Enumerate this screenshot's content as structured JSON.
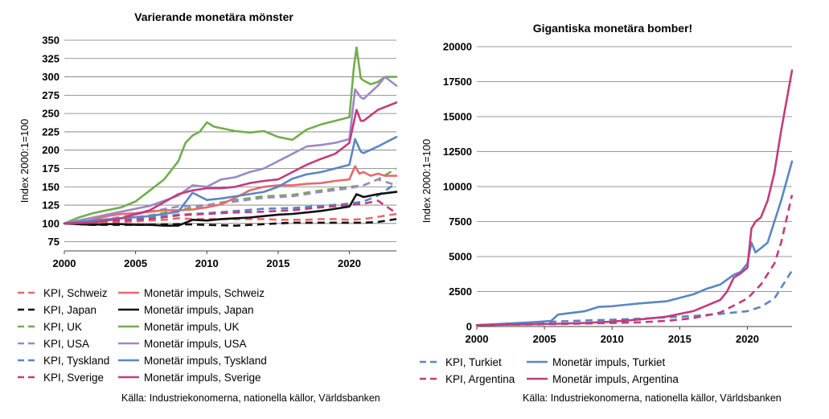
{
  "chart_data": [
    {
      "type": "line",
      "title": "Varierande monetära mönster",
      "xlabel": "",
      "ylabel": "Index 2000:1=100",
      "xlim": [
        2000,
        2023.3
      ],
      "ylim": [
        62.5,
        350
      ],
      "xticks": [
        "2000",
        "2005",
        "2010",
        "2015",
        "2020"
      ],
      "yticks": [
        "75",
        "100",
        "125",
        "150",
        "175",
        "200",
        "225",
        "250",
        "275",
        "300",
        "325",
        "350"
      ],
      "grid": true,
      "legend_position": "bottom",
      "source": "Källa: Industriekonomerna, nationella källor, Världsbanken",
      "series": [
        {
          "name": "KPI, Schweiz",
          "color": "#e8696b",
          "dashed": true,
          "x": [
            2000,
            2001,
            2002,
            2003,
            2004,
            2005,
            2006,
            2007,
            2008,
            2009,
            2010,
            2011,
            2012,
            2013,
            2014,
            2015,
            2016,
            2017,
            2018,
            2019,
            2020,
            2021,
            2022,
            2023.3
          ],
          "y": [
            100,
            100,
            101,
            101,
            102,
            103,
            104,
            105,
            107,
            106,
            106,
            106,
            106,
            106,
            106,
            105,
            105,
            105,
            106,
            106,
            105,
            106,
            109,
            113
          ]
        },
        {
          "name": "Monetär impuls, Schweiz",
          "color": "#e8696b",
          "dashed": false,
          "x": [
            2000,
            2001,
            2002,
            2003,
            2004,
            2005,
            2006,
            2007,
            2008,
            2009,
            2010,
            2011,
            2012,
            2013,
            2014,
            2015,
            2016,
            2017,
            2018,
            2019,
            2020,
            2020.4,
            2020.7,
            2021,
            2021.5,
            2022,
            2022.5,
            2023.3
          ],
          "y": [
            100,
            100,
            105,
            110,
            113,
            114,
            116,
            118,
            118,
            119,
            122,
            126,
            135,
            145,
            150,
            152,
            152,
            154,
            155,
            158,
            160,
            178,
            168,
            170,
            165,
            168,
            165,
            165
          ]
        },
        {
          "name": "KPI, Japan",
          "color": "#111111",
          "dashed": true,
          "x": [
            2000,
            2002,
            2004,
            2006,
            2008,
            2010,
            2012,
            2014,
            2016,
            2018,
            2020,
            2021,
            2022,
            2023.3
          ],
          "y": [
            100,
            98,
            98,
            98,
            99,
            98,
            97,
            99,
            101,
            101,
            101,
            101,
            102,
            106
          ]
        },
        {
          "name": "Monetär impuls, Japan",
          "color": "#111111",
          "dashed": false,
          "x": [
            2000,
            2001,
            2002,
            2003,
            2004,
            2005,
            2006,
            2007,
            2008,
            2009,
            2010,
            2011,
            2012,
            2013,
            2014,
            2015,
            2016,
            2017,
            2018,
            2019,
            2020,
            2020.5,
            2021,
            2022,
            2023.3
          ],
          "y": [
            100,
            99,
            98,
            99,
            99,
            98,
            98,
            97,
            97,
            105,
            104,
            106,
            107,
            108,
            110,
            112,
            113,
            115,
            117,
            120,
            123,
            140,
            136,
            140,
            143
          ]
        },
        {
          "name": "KPI, UK",
          "color": "#72ad4b",
          "dashed": true,
          "x": [
            2000,
            2002,
            2004,
            2006,
            2008,
            2010,
            2012,
            2014,
            2016,
            2018,
            2020,
            2021,
            2022,
            2023.3
          ],
          "y": [
            100,
            103,
            106,
            111,
            118,
            125,
            132,
            137,
            139,
            145,
            150,
            152,
            160,
            175
          ]
        },
        {
          "name": "Monetär impuls, UK",
          "color": "#72ad4b",
          "dashed": false,
          "x": [
            2000,
            2001,
            2002,
            2003,
            2004,
            2005,
            2006,
            2007,
            2008,
            2008.5,
            2009,
            2009.5,
            2010,
            2010.5,
            2011,
            2012,
            2013,
            2014,
            2015,
            2016,
            2017,
            2018,
            2019,
            2020,
            2020.3,
            2020.5,
            2020.8,
            2021,
            2021.5,
            2022,
            2022.5,
            2023.3
          ],
          "y": [
            100,
            108,
            114,
            118,
            122,
            130,
            145,
            160,
            185,
            210,
            220,
            225,
            238,
            232,
            230,
            226,
            224,
            226,
            218,
            214,
            228,
            235,
            240,
            245,
            310,
            340,
            298,
            295,
            290,
            293,
            300,
            300
          ]
        },
        {
          "name": "KPI, USA",
          "color": "#9b88c6",
          "dashed": true,
          "x": [
            2000,
            2002,
            2004,
            2006,
            2008,
            2010,
            2012,
            2014,
            2016,
            2018,
            2020,
            2021,
            2022,
            2023.3
          ],
          "y": [
            100,
            103,
            109,
            116,
            123,
            125,
            130,
            135,
            137,
            143,
            148,
            152,
            160,
            152
          ]
        },
        {
          "name": "Monetär impuls, USA",
          "color": "#9b88c6",
          "dashed": false,
          "x": [
            2000,
            2002,
            2004,
            2006,
            2008,
            2009,
            2010,
            2011,
            2012,
            2013,
            2014,
            2015,
            2016,
            2017,
            2018,
            2019,
            2020,
            2020.4,
            2020.8,
            2021,
            2022,
            2022.5,
            2023.3
          ],
          "y": [
            100,
            108,
            116,
            124,
            138,
            152,
            150,
            160,
            163,
            170,
            175,
            185,
            195,
            205,
            207,
            210,
            215,
            283,
            272,
            270,
            288,
            300,
            288
          ]
        },
        {
          "name": "KPI, Tyskland",
          "color": "#5b86c5",
          "dashed": true,
          "x": [
            2000,
            2002,
            2004,
            2006,
            2008,
            2010,
            2012,
            2014,
            2016,
            2018,
            2020,
            2021,
            2022,
            2023.3
          ],
          "y": [
            100,
            102,
            105,
            108,
            112,
            114,
            117,
            120,
            121,
            124,
            127,
            130,
            138,
            155
          ]
        },
        {
          "name": "Monetär impuls, Tyskland",
          "color": "#5b86c5",
          "dashed": false,
          "x": [
            2000,
            2002,
            2004,
            2006,
            2008,
            2009,
            2010,
            2011,
            2012,
            2013,
            2014,
            2015,
            2016,
            2017,
            2018,
            2019,
            2020,
            2020.4,
            2020.8,
            2021,
            2022,
            2023.3
          ],
          "y": [
            100,
            104,
            107,
            110,
            116,
            142,
            132,
            134,
            137,
            140,
            143,
            150,
            161,
            167,
            170,
            175,
            180,
            215,
            198,
            196,
            205,
            218
          ]
        },
        {
          "name": "KPI, Sverige",
          "color": "#c23c7d",
          "dashed": true,
          "x": [
            2000,
            2002,
            2004,
            2006,
            2008,
            2010,
            2012,
            2014,
            2016,
            2018,
            2020,
            2021,
            2022,
            2023.3
          ],
          "y": [
            100,
            103,
            104,
            106,
            111,
            113,
            115,
            116,
            118,
            122,
            125,
            127,
            131,
            114
          ]
        },
        {
          "name": "Monetär impuls, Sverige",
          "color": "#c23c7d",
          "dashed": false,
          "x": [
            2000,
            2002,
            2004,
            2006,
            2008,
            2009,
            2010,
            2011,
            2012,
            2013,
            2014,
            2015,
            2016,
            2017,
            2018,
            2019,
            2020,
            2020.5,
            2020.8,
            2021,
            2022,
            2023.3
          ],
          "y": [
            100,
            101,
            107,
            118,
            140,
            145,
            148,
            148,
            150,
            155,
            158,
            160,
            170,
            180,
            188,
            195,
            210,
            255,
            240,
            240,
            255,
            265
          ]
        }
      ]
    },
    {
      "type": "line",
      "title": "Gigantiska monetära bomber!",
      "xlabel": "",
      "ylabel": "Index 2000:1=100",
      "xlim": [
        2000,
        2023.3
      ],
      "ylim": [
        0,
        20000
      ],
      "xticks": [
        "2000",
        "2005",
        "2010",
        "2015",
        "2020"
      ],
      "yticks": [
        "0",
        "2500",
        "5000",
        "7500",
        "10000",
        "12500",
        "15000",
        "17500",
        "20000"
      ],
      "grid": true,
      "legend_position": "bottom",
      "source": "Källa: Industriekonomerna, nationella källor, Världsbanken",
      "series": [
        {
          "name": "KPI, Turkiet",
          "color": "#5b86c5",
          "dashed": true,
          "x": [
            2000,
            2002,
            2004,
            2006,
            2008,
            2010,
            2012,
            2014,
            2016,
            2018,
            2019,
            2020,
            2021,
            2022,
            2023.3
          ],
          "y": [
            100,
            180,
            260,
            360,
            430,
            490,
            560,
            650,
            750,
            900,
            1000,
            1100,
            1400,
            2000,
            4000
          ]
        },
        {
          "name": "Monetär impuls, Turkiet",
          "color": "#5b86c5",
          "dashed": false,
          "x": [
            2000,
            2002,
            2004,
            2005.5,
            2006,
            2008,
            2009,
            2010,
            2011,
            2012,
            2014,
            2016,
            2017,
            2018,
            2019,
            2019.5,
            2020,
            2020.3,
            2020.6,
            2021,
            2021.5,
            2022,
            2022.5,
            2023.3
          ],
          "y": [
            100,
            200,
            300,
            400,
            850,
            1100,
            1400,
            1450,
            1550,
            1650,
            1800,
            2300,
            2700,
            3000,
            3700,
            3900,
            4500,
            6000,
            5300,
            5600,
            6000,
            7500,
            9000,
            11800
          ]
        },
        {
          "name": "KPI, Argentina",
          "color": "#c23c7d",
          "dashed": true,
          "x": [
            2000,
            2002,
            2004,
            2006,
            2008,
            2010,
            2012,
            2014,
            2016,
            2018,
            2019,
            2020,
            2021,
            2022,
            2022.5,
            2023.3
          ],
          "y": [
            100,
            130,
            150,
            170,
            210,
            250,
            300,
            400,
            600,
            1000,
            1500,
            2000,
            3000,
            4500,
            6000,
            9400
          ]
        },
        {
          "name": "Monetär impuls, Argentina",
          "color": "#c23c7d",
          "dashed": false,
          "x": [
            2000,
            2002,
            2004,
            2006,
            2008,
            2010,
            2012,
            2014,
            2016,
            2017,
            2018,
            2018.5,
            2019,
            2019.5,
            2020,
            2020.3,
            2020.6,
            2021,
            2021.5,
            2022,
            2022.5,
            2023.3
          ],
          "y": [
            100,
            130,
            160,
            200,
            250,
            350,
            500,
            700,
            1100,
            1500,
            1900,
            2500,
            3500,
            3800,
            4200,
            7000,
            7500,
            7800,
            9000,
            11000,
            14000,
            18300
          ]
        }
      ]
    }
  ]
}
